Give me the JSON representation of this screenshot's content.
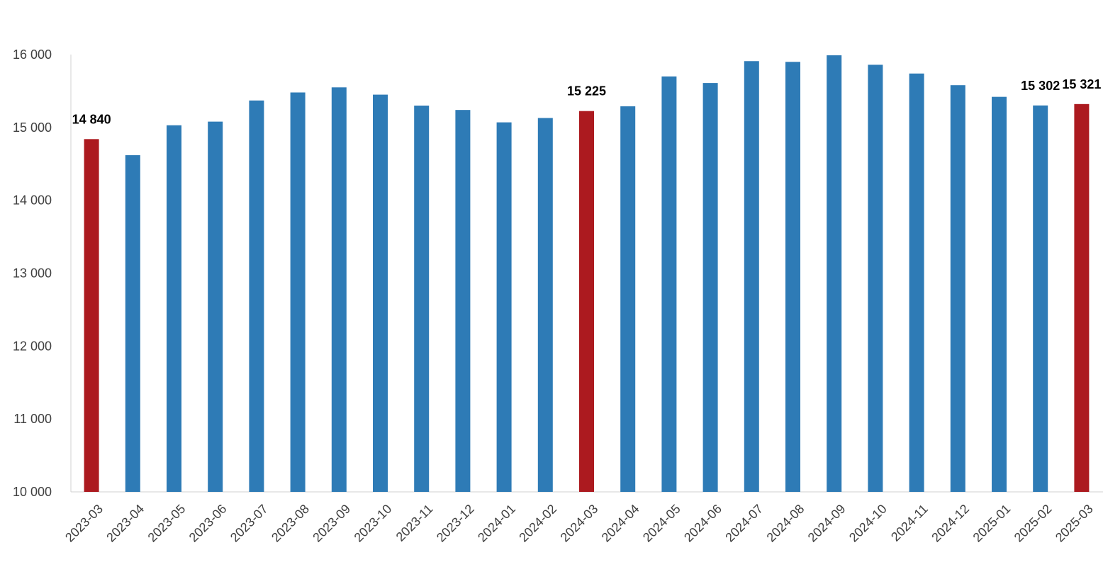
{
  "chart_data": {
    "type": "bar",
    "title": "",
    "xlabel": "",
    "ylabel": "",
    "ylim": [
      10000,
      16000
    ],
    "y_ticks": [
      10000,
      11000,
      12000,
      13000,
      14000,
      15000,
      16000
    ],
    "y_tick_labels": [
      "10 000",
      "11 000",
      "12 000",
      "13 000",
      "14 000",
      "15 000",
      "16 000"
    ],
    "grid": false,
    "legend": "none",
    "categories": [
      "2023-03",
      "2023-04",
      "2023-05",
      "2023-06",
      "2023-07",
      "2023-08",
      "2023-09",
      "2023-10",
      "2023-11",
      "2023-12",
      "2024-01",
      "2024-02",
      "2024-03",
      "2024-04",
      "2024-05",
      "2024-06",
      "2024-07",
      "2024-08",
      "2024-09",
      "2024-10",
      "2024-11",
      "2024-12",
      "2025-01",
      "2025-02",
      "2025-03"
    ],
    "values": [
      14840,
      14620,
      15030,
      15080,
      15370,
      15480,
      15550,
      15450,
      15300,
      15240,
      15070,
      15130,
      15225,
      15290,
      15700,
      15610,
      15910,
      15900,
      15990,
      15860,
      15740,
      15580,
      15420,
      15302,
      15321
    ],
    "highlighted": [
      true,
      false,
      false,
      false,
      false,
      false,
      false,
      false,
      false,
      false,
      false,
      false,
      true,
      false,
      false,
      false,
      false,
      false,
      false,
      false,
      false,
      false,
      false,
      false,
      true
    ],
    "data_labels": [
      {
        "index": 0,
        "text": "14 840"
      },
      {
        "index": 12,
        "text": "15 225"
      },
      {
        "index": 23,
        "text": "15 302"
      },
      {
        "index": 24,
        "text": "15 321"
      }
    ],
    "colors": {
      "bar": "#2e7bb6",
      "highlight": "#ac1a1f",
      "axis": "#d0d0d0",
      "tick_text": "#404040",
      "label_text": "#000000"
    }
  }
}
